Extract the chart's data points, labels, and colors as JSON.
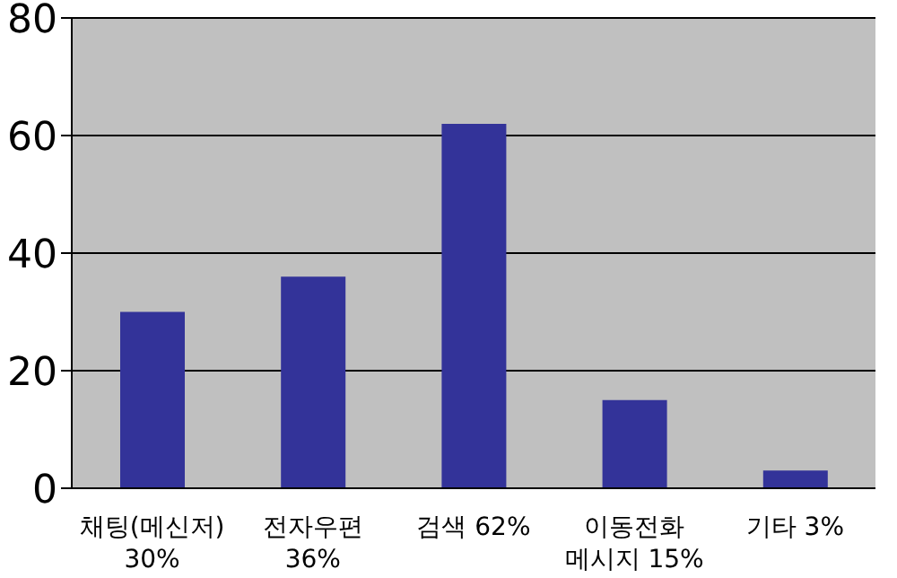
{
  "chart_data": {
    "type": "bar",
    "categories": [
      "채팅(메신저) 30%",
      "전자우편 36%",
      "검색 62%",
      "이동전화 메시지 15%",
      "기타 3%"
    ],
    "values": [
      30,
      36,
      62,
      15,
      3
    ],
    "color": "#333399",
    "ylim": [
      0,
      80
    ],
    "yticks": [
      0,
      20,
      40,
      60,
      80
    ],
    "grid": "y",
    "legend": false
  }
}
